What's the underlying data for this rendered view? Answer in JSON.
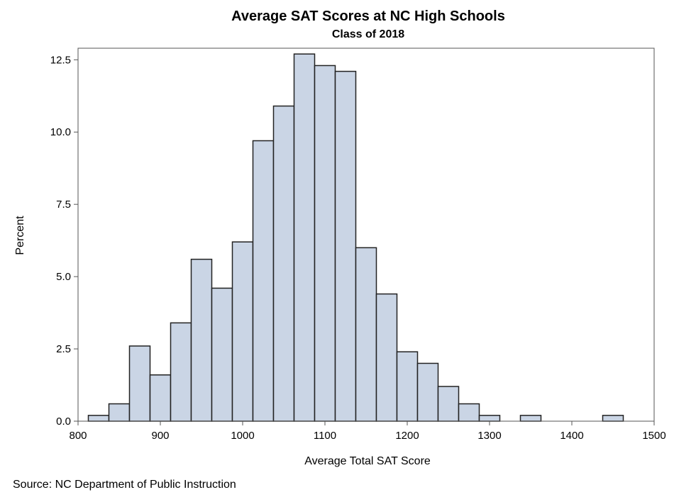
{
  "chart_data": {
    "type": "histogram",
    "title": "Average SAT Scores at NC High Schools",
    "subtitle": "Class of 2018",
    "xlabel": "Average Total SAT Score",
    "ylabel": "Percent",
    "xlim": [
      800,
      1500
    ],
    "ylim": [
      0,
      12.9
    ],
    "xticks": [
      800,
      900,
      1000,
      1100,
      1200,
      1300,
      1400,
      1500
    ],
    "yticks": [
      0.0,
      2.5,
      5.0,
      7.5,
      10.0,
      12.5
    ],
    "ytick_labels": [
      "0.0",
      "2.5",
      "5.0",
      "7.5",
      "10.0",
      "12.5"
    ],
    "bin_width": 25,
    "bin_start": 812.5,
    "values": [
      0.2,
      0.6,
      2.6,
      1.6,
      3.4,
      5.6,
      4.6,
      6.2,
      9.7,
      10.9,
      12.7,
      12.3,
      12.1,
      6.0,
      4.4,
      2.4,
      2.0,
      1.2,
      0.6,
      0.2,
      0.0,
      0.2,
      0.0,
      0.0,
      0.0,
      0.2
    ],
    "grid": false,
    "bar_fill": "#cad5e5",
    "bar_stroke": "#222222"
  },
  "footnote": "Source: NC Department of Public Instruction"
}
